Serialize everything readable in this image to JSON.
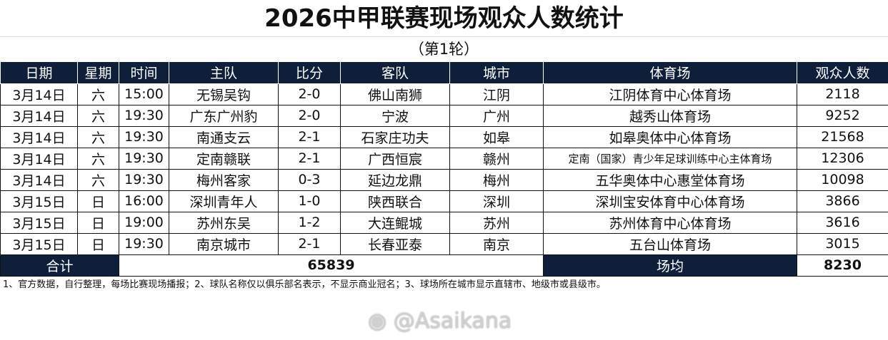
{
  "title": "2026中甲联赛现场观众人数统计",
  "subtitle": "（第1轮）",
  "headers": [
    "日期",
    "星期",
    "时间",
    "主队",
    "比分",
    "客队",
    "城市",
    "体育场",
    "观众人数"
  ],
  "rows": [
    [
      "3月14日",
      "六",
      "15:00",
      "无锡吴钩",
      "2-0",
      "佛山南狮",
      "江阴",
      "江阴体育中心体育场",
      "2118"
    ],
    [
      "3月14日",
      "六",
      "19:30",
      "广东广州豹",
      "2-0",
      "宁波",
      "广州",
      "越秀山体育场",
      "9252"
    ],
    [
      "3月14日",
      "六",
      "19:30",
      "南通支云",
      "2-1",
      "石家庄功夫",
      "如皋",
      "如皋奥体中心体育场",
      "21568"
    ],
    [
      "3月14日",
      "六",
      "19:30",
      "定南赣联",
      "2-1",
      "广西恒宸",
      "赣州",
      "定南（国家）青少年足球训练中心主体育场",
      "12306"
    ],
    [
      "3月14日",
      "六",
      "19:30",
      "梅州客家",
      "0-3",
      "延边龙鼎",
      "梅州",
      "五华奥体中心惠堂体育场",
      "10098"
    ],
    [
      "3月15日",
      "日",
      "16:00",
      "深圳青年人",
      "1-0",
      "陕西联合",
      "深圳",
      "深圳宝安体育中心体育场",
      "3866"
    ],
    [
      "3月15日",
      "日",
      "19:00",
      "苏州东吴",
      "1-2",
      "大连鲲城",
      "苏州",
      "苏州体育中心体育场",
      "3616"
    ],
    [
      "3月15日",
      "日",
      "19:30",
      "南京城市",
      "2-1",
      "长春亚泰",
      "南京",
      "五台山体育场",
      "3015"
    ]
  ],
  "totals": {
    "total_label": "合计",
    "total_value": "65839",
    "avg_label": "场均",
    "avg_value": "8230"
  },
  "note": "1、官方数据，自行整理，每场比赛现场播报；2、球队名称仅以俱乐部名表示，不显示商业冠名；3、球场所在城市显示直辖市、地级市或县级市。",
  "watermark": "@Asaikana",
  "colors": {
    "header_bg": "#0f1f3a"
  }
}
